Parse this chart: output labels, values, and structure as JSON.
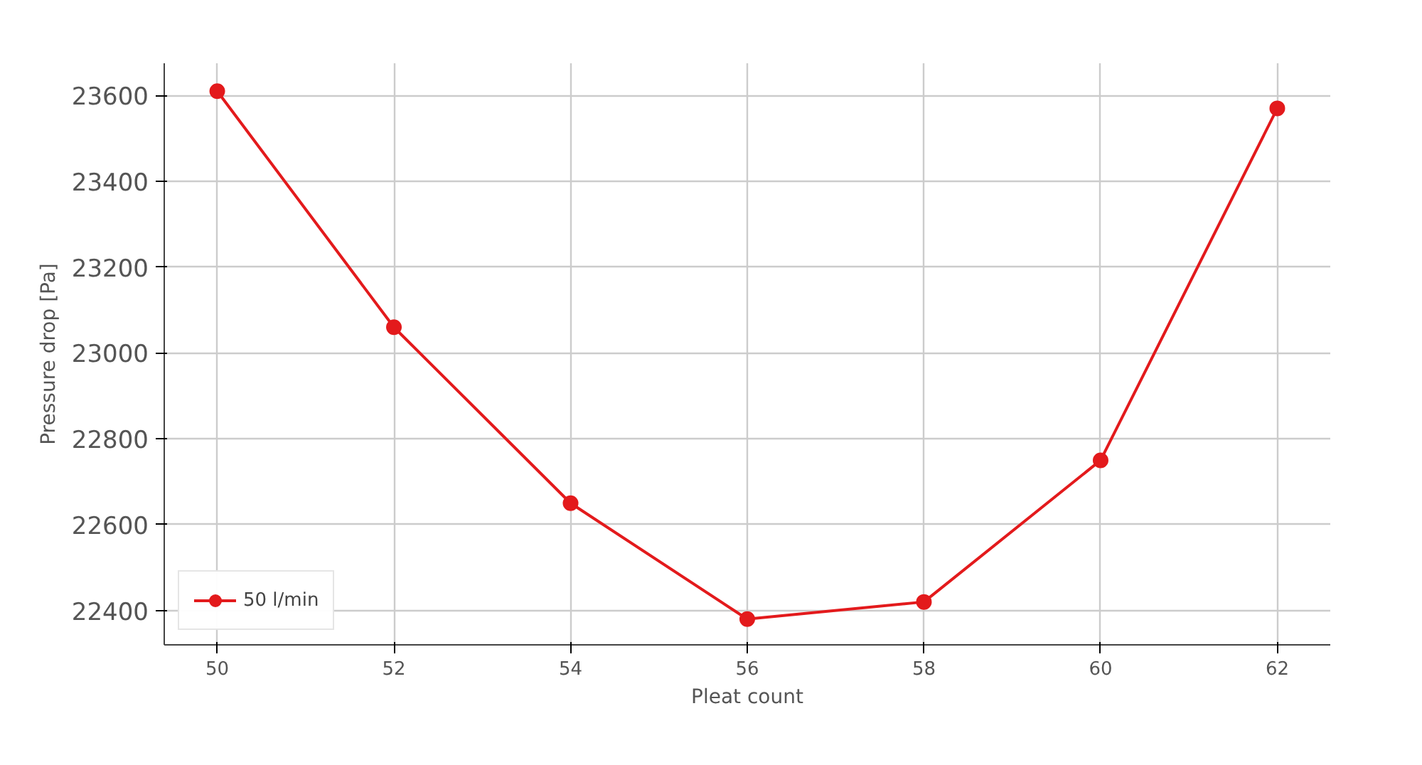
{
  "chart_data": {
    "type": "line",
    "xlabel": "Pleat count",
    "ylabel": "Pressure drop [Pa]",
    "x": [
      50,
      52,
      54,
      56,
      58,
      60,
      62
    ],
    "series": [
      {
        "name": "50 l/min",
        "color": "#e31a1c",
        "values": [
          23610,
          23060,
          22650,
          22380,
          22420,
          22750,
          23570
        ]
      }
    ],
    "xlim": [
      49.4,
      62.6
    ],
    "ylim": [
      22320,
      23675
    ],
    "xticks": [
      50,
      52,
      54,
      56,
      58,
      60,
      62
    ],
    "yticks": [
      22400,
      22600,
      22800,
      23000,
      23200,
      23400,
      23600
    ],
    "grid": true,
    "legend": "bottom left",
    "marker": "circle",
    "line_style": "solid"
  }
}
